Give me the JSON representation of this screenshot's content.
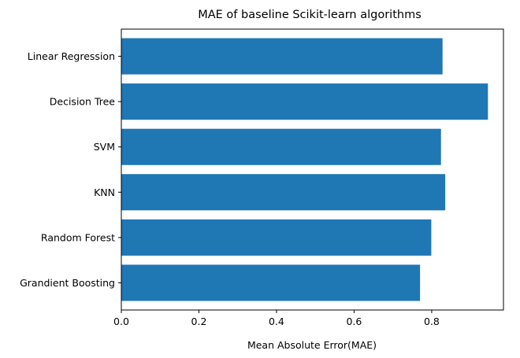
{
  "chart_data": {
    "type": "bar",
    "orientation": "horizontal",
    "title": "MAE of baseline Scikit-learn algorithms",
    "xlabel": "Mean Absolute Error(MAE)",
    "ylabel": "",
    "categories": [
      "Linear Regression",
      "Decision Tree",
      "SVM",
      "KNN",
      "Random Forest",
      "Grandient Boosting"
    ],
    "values": [
      0.828,
      0.945,
      0.824,
      0.835,
      0.799,
      0.77
    ],
    "xlim": [
      0.0,
      0.985
    ],
    "xticks": [
      0.0,
      0.2,
      0.4,
      0.6,
      0.8
    ],
    "xtick_labels": [
      "0.0",
      "0.2",
      "0.4",
      "0.6",
      "0.8"
    ],
    "grid": false,
    "bar_color": "#1f77b4"
  }
}
